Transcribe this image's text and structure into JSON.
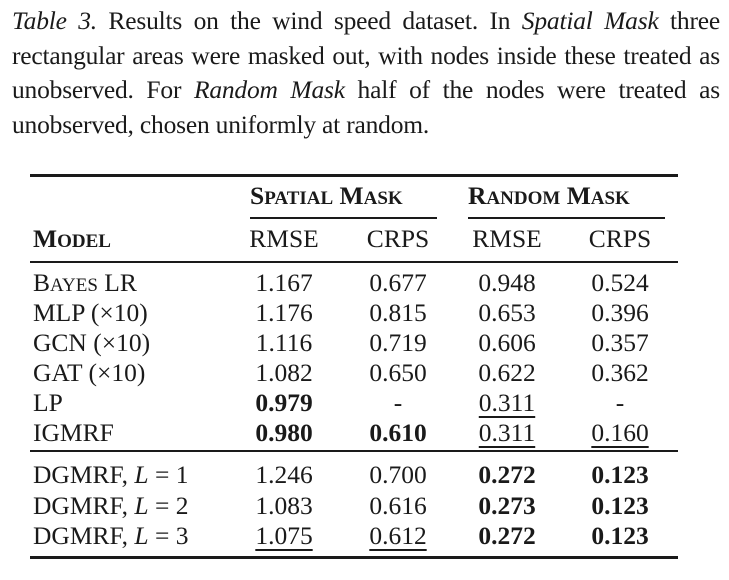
{
  "caption": {
    "label": "Table 3.",
    "text_parts": [
      " Results on the wind speed dataset. In ",
      "Spatial Mask",
      " three rectangular areas were masked out, with nodes inside these treated as unobserved. For ",
      "Random Mask",
      " half of the nodes were treated as unobserved, chosen uniformly at random."
    ]
  },
  "table": {
    "model_header": {
      "big": "M",
      "small": "ODEL"
    },
    "groups": [
      {
        "name": "Spatial Mask",
        "parts": [
          [
            "S",
            "PATIAL"
          ],
          [
            "M",
            "ASK"
          ]
        ]
      },
      {
        "name": "Random Mask",
        "parts": [
          [
            "R",
            "ANDOM"
          ],
          [
            "M",
            "ASK"
          ]
        ]
      }
    ],
    "subheaders": [
      "RMSE",
      "CRPS",
      "RMSE",
      "CRPS"
    ],
    "rows": [
      {
        "model": "Bayes LR",
        "cells": [
          {
            "v": "1.167"
          },
          {
            "v": "0.677"
          },
          {
            "v": "0.948"
          },
          {
            "v": "0.524"
          }
        ]
      },
      {
        "model": "MLP (×10)",
        "cells": [
          {
            "v": "1.176"
          },
          {
            "v": "0.815"
          },
          {
            "v": "0.653"
          },
          {
            "v": "0.396"
          }
        ]
      },
      {
        "model": "GCN (×10)",
        "cells": [
          {
            "v": "1.116"
          },
          {
            "v": "0.719"
          },
          {
            "v": "0.606"
          },
          {
            "v": "0.357"
          }
        ]
      },
      {
        "model": "GAT (×10)",
        "cells": [
          {
            "v": "1.082"
          },
          {
            "v": "0.650"
          },
          {
            "v": "0.622"
          },
          {
            "v": "0.362"
          }
        ]
      },
      {
        "model": "LP",
        "cells": [
          {
            "v": "0.979",
            "bold": true
          },
          {
            "v": "-"
          },
          {
            "v": "0.311",
            "underline": true
          },
          {
            "v": "-"
          }
        ]
      },
      {
        "model": "IGMRF",
        "cells": [
          {
            "v": "0.980",
            "bold": true
          },
          {
            "v": "0.610",
            "bold": true
          },
          {
            "v": "0.311",
            "underline": true
          },
          {
            "v": "0.160",
            "underline": true
          }
        ]
      },
      {
        "model": "DGMRF, L = 1",
        "cells": [
          {
            "v": "1.246"
          },
          {
            "v": "0.700"
          },
          {
            "v": "0.272",
            "bold": true
          },
          {
            "v": "0.123",
            "bold": true
          }
        ]
      },
      {
        "model": "DGMRF, L = 2",
        "cells": [
          {
            "v": "1.083"
          },
          {
            "v": "0.616"
          },
          {
            "v": "0.273",
            "bold": true
          },
          {
            "v": "0.123",
            "bold": true
          }
        ]
      },
      {
        "model": "DGMRF, L = 3",
        "cells": [
          {
            "v": "1.075",
            "underline": true
          },
          {
            "v": "0.612",
            "underline": true
          },
          {
            "v": "0.272",
            "bold": true
          },
          {
            "v": "0.123",
            "bold": true
          }
        ]
      }
    ]
  }
}
